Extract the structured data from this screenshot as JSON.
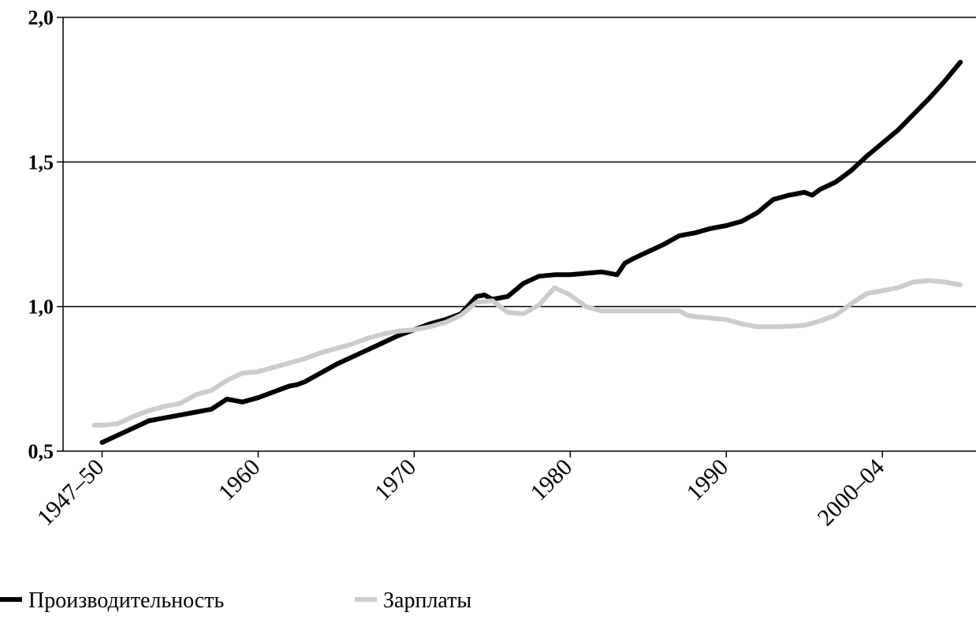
{
  "chart_data": {
    "type": "line",
    "title": "",
    "xlabel": "",
    "ylabel": "",
    "xlim": [
      1947.5,
      2006
    ],
    "ylim": [
      0.5,
      2.0
    ],
    "grid": "horizontal",
    "legend_position": "bottom",
    "y_ticks": [
      {
        "value": 0.5,
        "label": "0,5"
      },
      {
        "value": 1.0,
        "label": "1,0"
      },
      {
        "value": 1.5,
        "label": "1,5"
      },
      {
        "value": 2.0,
        "label": "2,0"
      }
    ],
    "x_ticks": [
      {
        "value": 1950,
        "label": "1947–50"
      },
      {
        "value": 1960,
        "label": "1960"
      },
      {
        "value": 1970,
        "label": "1970"
      },
      {
        "value": 1980,
        "label": "1980"
      },
      {
        "value": 1990,
        "label": "1990"
      },
      {
        "value": 2000,
        "label": "2000–04"
      }
    ],
    "series": [
      {
        "name": "Производительность",
        "color": "#000000",
        "x": [
          1950,
          1951,
          1952,
          1953,
          1954,
          1955,
          1956,
          1957,
          1958,
          1958.5,
          1959,
          1960,
          1961,
          1962,
          1962.5,
          1963,
          1964,
          1965,
          1966,
          1967,
          1968,
          1969,
          1970,
          1971,
          1972,
          1973,
          1974,
          1974.5,
          1975,
          1976,
          1977,
          1978,
          1979,
          1980,
          1981,
          1982,
          1983,
          1983.5,
          1984,
          1985,
          1986,
          1987,
          1988,
          1989,
          1990,
          1991,
          1992,
          1993,
          1994,
          1995,
          1995.5,
          1996,
          1997,
          1998,
          1999,
          2000,
          2001,
          2002,
          2003,
          2004,
          2005
        ],
        "values": [
          0.53,
          0.555,
          0.58,
          0.605,
          0.615,
          0.625,
          0.635,
          0.645,
          0.68,
          0.675,
          0.67,
          0.685,
          0.705,
          0.725,
          0.73,
          0.74,
          0.77,
          0.8,
          0.825,
          0.85,
          0.875,
          0.9,
          0.92,
          0.94,
          0.955,
          0.975,
          1.035,
          1.04,
          1.025,
          1.035,
          1.08,
          1.105,
          1.11,
          1.11,
          1.115,
          1.12,
          1.11,
          1.15,
          1.165,
          1.19,
          1.215,
          1.245,
          1.255,
          1.27,
          1.28,
          1.295,
          1.325,
          1.37,
          1.385,
          1.395,
          1.385,
          1.405,
          1.43,
          1.47,
          1.52,
          1.565,
          1.61,
          1.665,
          1.72,
          1.78,
          1.845
        ]
      },
      {
        "name": "Зарплаты",
        "color": "#cccccc",
        "x": [
          1949.5,
          1950,
          1951,
          1952,
          1953,
          1954,
          1955,
          1956,
          1957,
          1958,
          1959,
          1960,
          1961,
          1962,
          1963,
          1964,
          1965,
          1966,
          1967,
          1968,
          1969,
          1970,
          1971,
          1972,
          1973,
          1974,
          1975,
          1976,
          1977,
          1978,
          1979,
          1980,
          1981,
          1982,
          1983,
          1984,
          1985,
          1986,
          1987,
          1987.5,
          1988,
          1989,
          1990,
          1991,
          1992,
          1993,
          1994,
          1995,
          1996,
          1997,
          1998,
          1999,
          2000,
          2001,
          2002,
          2003,
          2004,
          2005
        ],
        "values": [
          0.59,
          0.59,
          0.595,
          0.62,
          0.64,
          0.655,
          0.665,
          0.695,
          0.71,
          0.745,
          0.77,
          0.775,
          0.79,
          0.805,
          0.82,
          0.84,
          0.855,
          0.87,
          0.89,
          0.905,
          0.915,
          0.92,
          0.93,
          0.945,
          0.97,
          1.015,
          1.02,
          0.98,
          0.975,
          1.005,
          1.065,
          1.04,
          1.0,
          0.985,
          0.985,
          0.985,
          0.985,
          0.985,
          0.985,
          0.97,
          0.965,
          0.96,
          0.955,
          0.94,
          0.93,
          0.93,
          0.932,
          0.935,
          0.95,
          0.97,
          1.01,
          1.045,
          1.055,
          1.065,
          1.085,
          1.09,
          1.085,
          1.075
        ]
      }
    ]
  }
}
